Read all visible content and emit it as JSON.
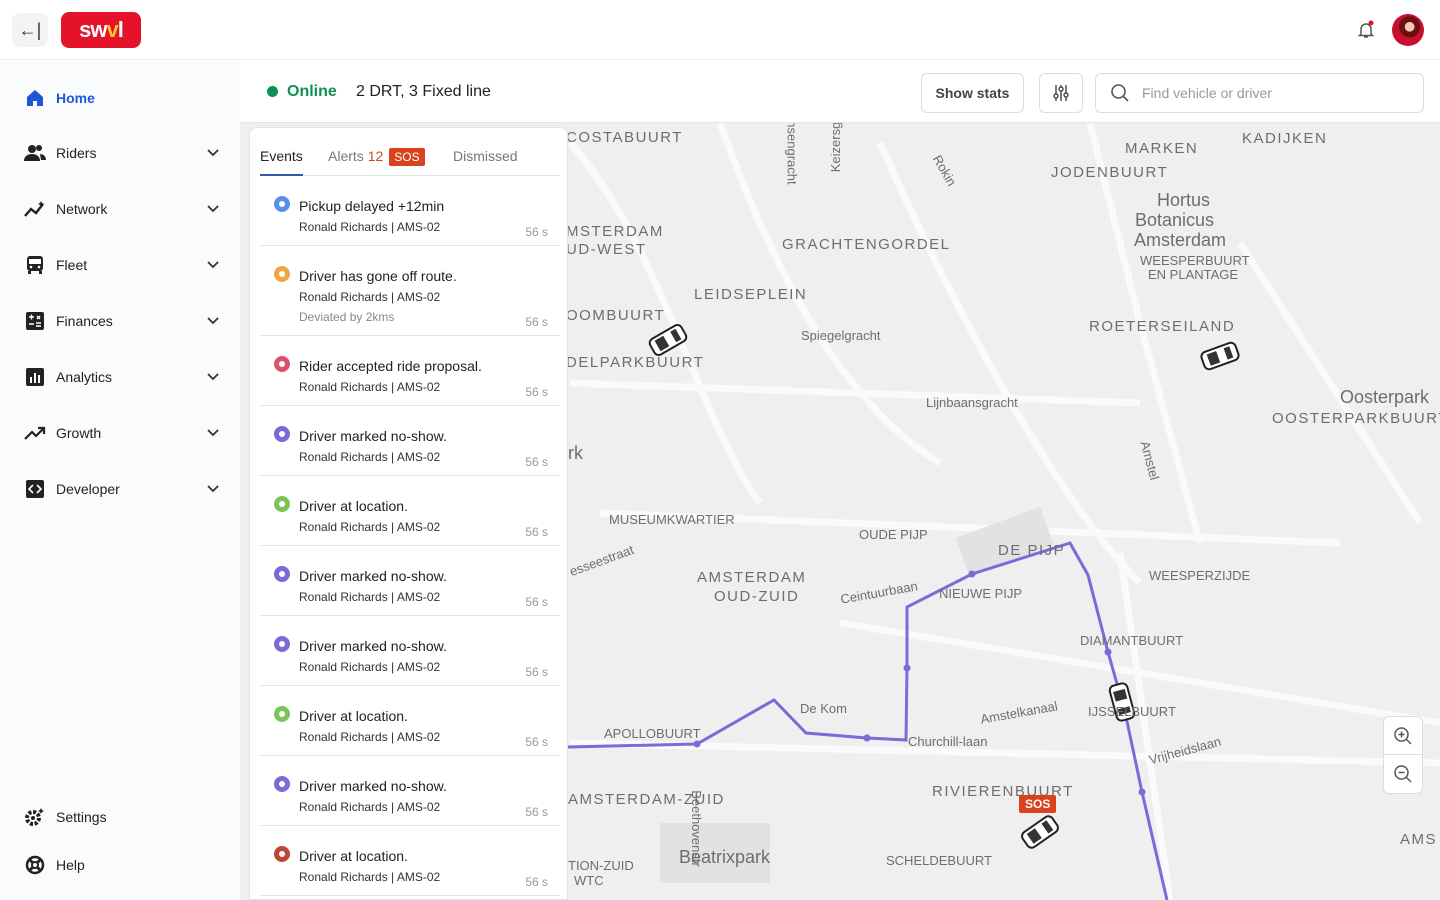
{
  "topbar": {
    "logo_text": "swvl",
    "collapse_icon": "arrow-left-bar-icon",
    "notifications_icon": "bell-icon",
    "has_unread": true
  },
  "sidebar": {
    "items": [
      {
        "label": "Home",
        "icon": "home-icon",
        "active": true
      },
      {
        "label": "Riders",
        "icon": "users-icon",
        "expandable": true
      },
      {
        "label": "Network",
        "icon": "network-icon",
        "expandable": true
      },
      {
        "label": "Fleet",
        "icon": "bus-icon",
        "expandable": true
      },
      {
        "label": "Finances",
        "icon": "calculator-icon",
        "expandable": true
      },
      {
        "label": "Analytics",
        "icon": "bar-chart-icon",
        "expandable": true
      },
      {
        "label": "Growth",
        "icon": "trend-up-icon",
        "expandable": true
      },
      {
        "label": "Developer",
        "icon": "code-icon",
        "expandable": true
      }
    ],
    "footer": [
      {
        "label": "Settings",
        "icon": "gear-icon"
      },
      {
        "label": "Help",
        "icon": "lifebuoy-icon"
      }
    ]
  },
  "header": {
    "status": "Online",
    "status_color": "#0f8f55",
    "summary": "2 DRT, 3 Fixed line",
    "show_stats": "Show stats",
    "filter_icon": "sliders-icon",
    "search_placeholder": "Find vehicle or driver"
  },
  "panel": {
    "tabs": [
      {
        "label": "Events",
        "active": true
      },
      {
        "label": "Alerts",
        "count": "12",
        "badge": "SOS"
      },
      {
        "label": "Dismissed"
      }
    ],
    "events": [
      {
        "title": "Pickup delayed +12min",
        "subtitle": "Ronald Richards | AMS-02",
        "time": "56 s",
        "color": "#5b8def"
      },
      {
        "title": "Driver has gone off route.",
        "subtitle": "Ronald Richards | AMS-02",
        "detail": "Deviated by 2kms",
        "time": "56 s",
        "color": "#f0a646"
      },
      {
        "title": "Rider accepted ride proposal.",
        "subtitle": "Ronald Richards | AMS-02",
        "time": "56 s",
        "color": "#e0506a"
      },
      {
        "title": "Driver marked no-show.",
        "subtitle": "Ronald Richards | AMS-02",
        "time": "56 s",
        "color": "#7a6bd6"
      },
      {
        "title": "Driver at location.",
        "subtitle": "Ronald Richards | AMS-02",
        "time": "56 s",
        "color": "#7cc45a"
      },
      {
        "title": "Driver marked no-show.",
        "subtitle": "Ronald Richards | AMS-02",
        "time": "56 s",
        "color": "#7a6bd6"
      },
      {
        "title": "Driver marked no-show.",
        "subtitle": "Ronald Richards | AMS-02",
        "time": "56 s",
        "color": "#7a6bd6"
      },
      {
        "title": "Driver at location.",
        "subtitle": "Ronald Richards | AMS-02",
        "time": "56 s",
        "color": "#7cc45a"
      },
      {
        "title": "Driver marked no-show.",
        "subtitle": "Ronald Richards | AMS-02",
        "time": "56 s",
        "color": "#7a6bd6"
      },
      {
        "title": "Driver at location.",
        "subtitle": "Ronald Richards | AMS-02",
        "time": "56 s",
        "color": "#c0443a"
      }
    ]
  },
  "map": {
    "route_color": "#7b6ad8",
    "sos_label": "SOS",
    "labels": [
      "COSTABUURT",
      "MSTERDAM",
      "UD-WEST",
      "GRACHTENGORDEL",
      "LEIDSEPLEIN",
      "OOMBUURT",
      "DELPARKBUURT",
      "Spiegelgracht",
      "Lijnbaansgracht",
      "MARKEN",
      "JODENBUURT",
      "KADIJKEN",
      "Hortus",
      "Botanicus",
      "Amsterdam",
      "WEESPERBUURT",
      "EN PLANTAGE",
      "ROETERSEILAND",
      "Oosterpark",
      "OOSTERPARKBUURT",
      "MUSEUMKWARTIER",
      "OUDE PIJP",
      "DE PIJP",
      "AMSTERDAM",
      "OUD-ZUID",
      "NIEUWE PIJP",
      "WEESPERZIJDE",
      "DIAMANTBUURT",
      "Ceintuurbaan",
      "De Kom",
      "APOLLOBUURT",
      "Amstelkanaal",
      "IJSSELBUURT",
      "Churchill-laan",
      "Vrijheidslaan",
      "AMSTERDAM-ZUID",
      "RIVIERENBUURT",
      "Beatrixpark",
      "SCHELDEBUURT",
      "TION-ZUID",
      "WTC",
      "AMS",
      "Prinsengracht",
      "Keizersgracht",
      "Rokin",
      "Amstel",
      "esseestraat",
      "rk",
      "Beethovenstr"
    ],
    "zoom_in_icon": "zoom-in-icon",
    "zoom_out_icon": "zoom-out-icon"
  }
}
